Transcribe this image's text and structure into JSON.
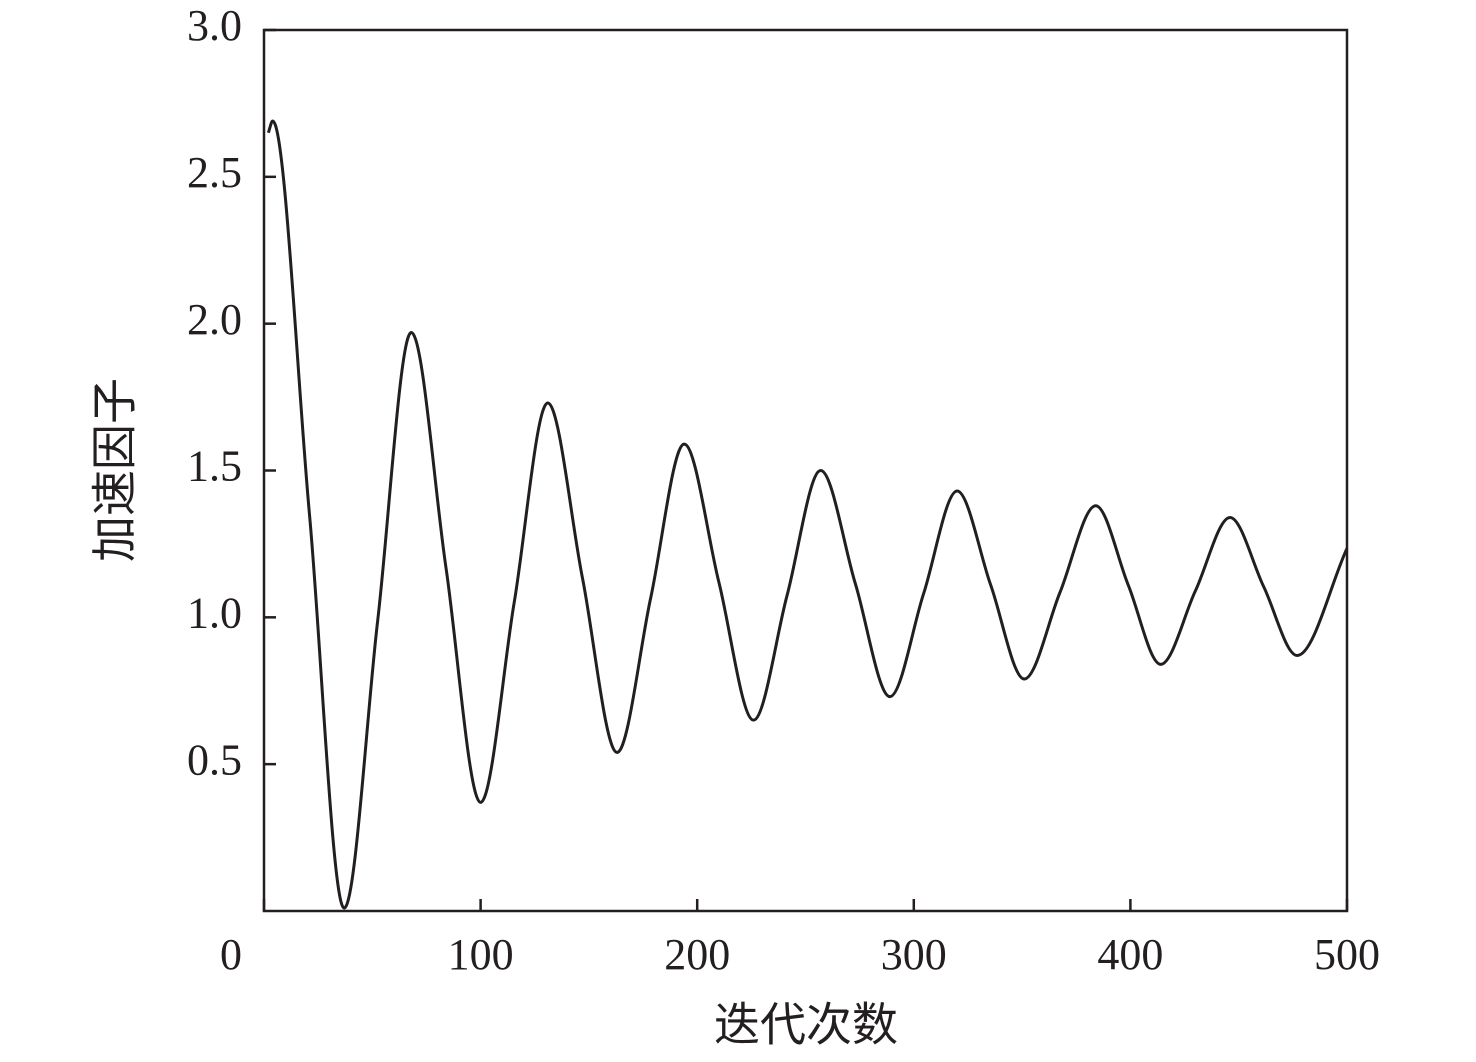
{
  "chart_data": {
    "type": "line",
    "xlabel": "迭代次数",
    "ylabel": "加速因子",
    "x": [
      2,
      4,
      21,
      37,
      52.5,
      68,
      84,
      100,
      115.5,
      131,
      147,
      163,
      178.5,
      194,
      210,
      226,
      241.5,
      257,
      273,
      289,
      304.5,
      320,
      335.5,
      351,
      367.5,
      384,
      399,
      414,
      430,
      446,
      461.5,
      477,
      500
    ],
    "series": [
      {
        "color": "#231f20",
        "values": [
          2.65,
          2.69,
          1.35,
          0.01,
          0.99,
          1.97,
          1.17,
          0.37,
          1.05,
          1.73,
          1.135,
          0.54,
          1.065,
          1.59,
          1.12,
          0.65,
          1.075,
          1.5,
          1.115,
          0.73,
          1.08,
          1.43,
          1.11,
          0.79,
          1.085,
          1.38,
          1.11,
          0.84,
          1.09,
          1.34,
          1.105,
          0.87,
          1.235
        ]
      }
    ],
    "xlim": [
      0,
      500
    ],
    "xticks": [
      0,
      100,
      200,
      300,
      400,
      500
    ],
    "ylim": [
      0,
      3
    ],
    "yticks": [
      {
        "value": 0.5,
        "label": "0.5"
      },
      {
        "value": 1,
        "label": "1.0"
      },
      {
        "value": 1.5,
        "label": "1.5"
      },
      {
        "value": 2,
        "label": "2.0"
      },
      {
        "value": 2.5,
        "label": "2.5"
      },
      {
        "value": 3,
        "label": "3.0"
      }
    ]
  }
}
